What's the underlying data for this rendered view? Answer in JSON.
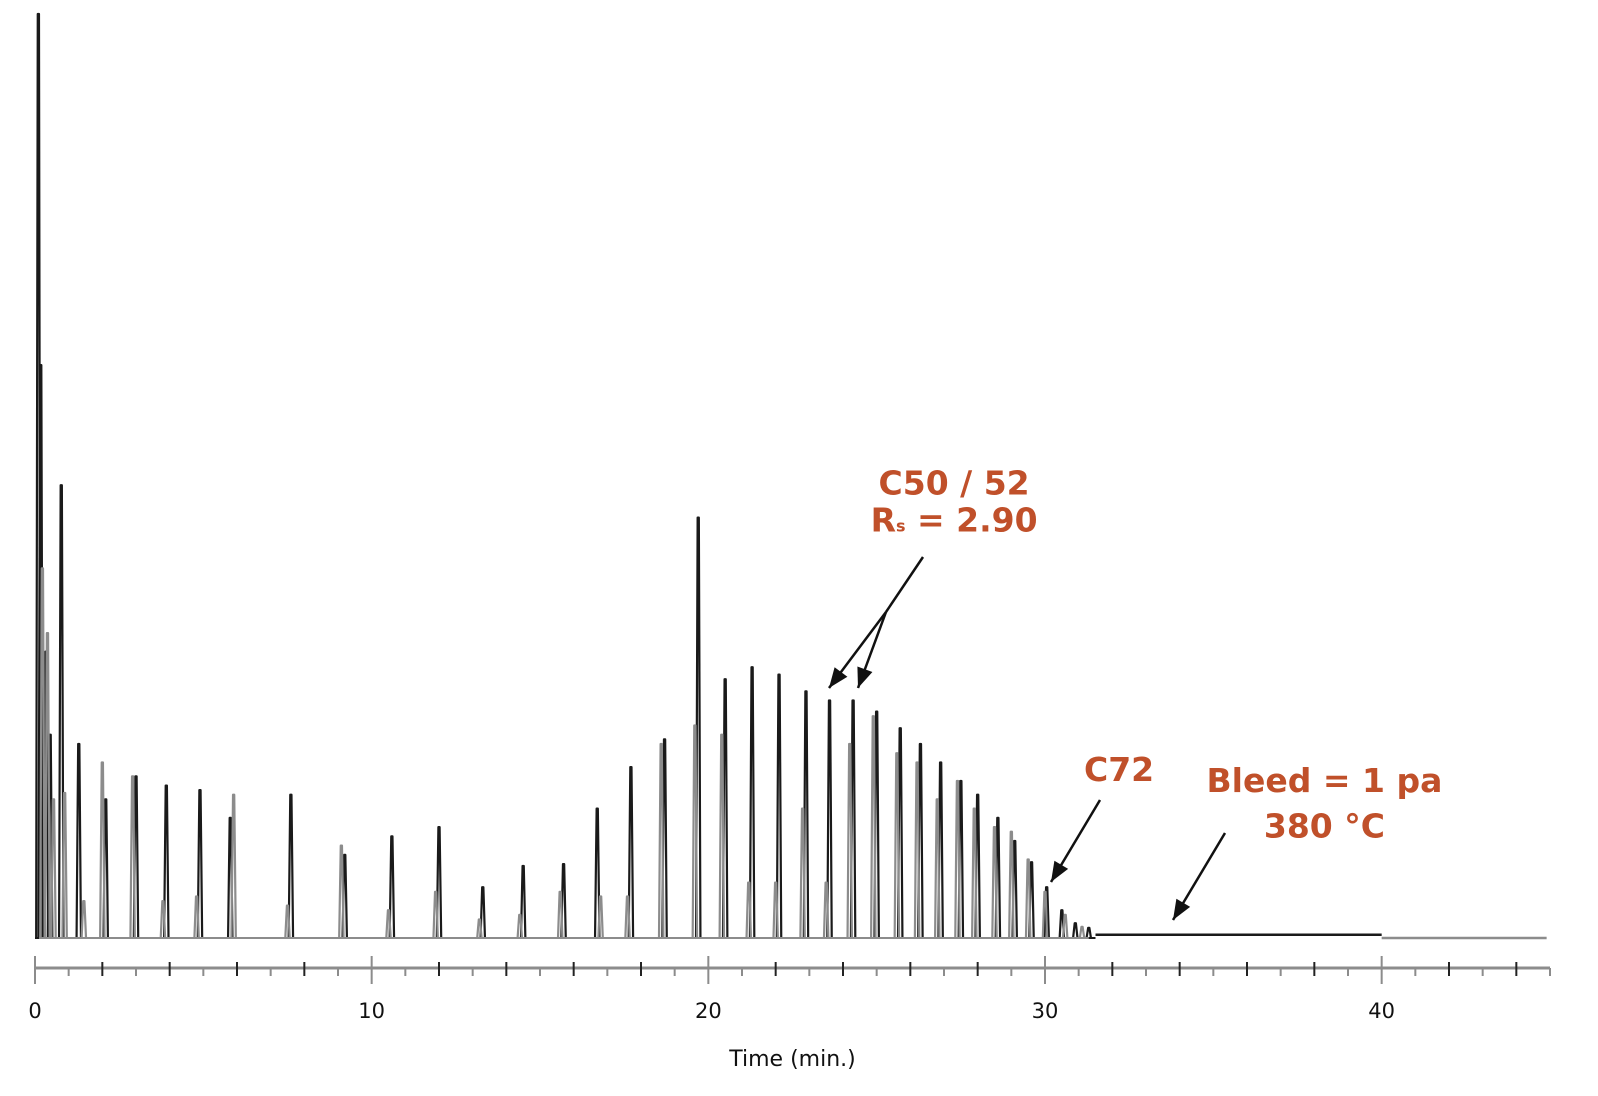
{
  "chart_data": {
    "type": "line",
    "xlabel": "Time (min.)",
    "ylabel": "",
    "title": "",
    "xlim": [
      0,
      45
    ],
    "ylim": [
      0,
      100
    ],
    "x_ticks": [
      0,
      10,
      20,
      30,
      40
    ],
    "grid": false,
    "series": [
      {
        "color": "#1a1a1a",
        "peaks": [
          {
            "x": 0.1,
            "y": 100
          },
          {
            "x": 0.17,
            "y": 62
          },
          {
            "x": 0.33,
            "y": 31
          },
          {
            "x": 0.45,
            "y": 22
          },
          {
            "x": 0.78,
            "y": 49
          },
          {
            "x": 1.3,
            "y": 21
          },
          {
            "x": 2.1,
            "y": 15
          },
          {
            "x": 3.0,
            "y": 17.5
          },
          {
            "x": 3.9,
            "y": 16.5
          },
          {
            "x": 4.9,
            "y": 16
          },
          {
            "x": 5.8,
            "y": 13
          },
          {
            "x": 7.6,
            "y": 15.5
          },
          {
            "x": 9.2,
            "y": 9
          },
          {
            "x": 10.6,
            "y": 11
          },
          {
            "x": 12.0,
            "y": 12
          },
          {
            "x": 13.3,
            "y": 5.5
          },
          {
            "x": 14.5,
            "y": 7.8
          },
          {
            "x": 15.7,
            "y": 8
          },
          {
            "x": 16.7,
            "y": 14
          },
          {
            "x": 17.7,
            "y": 18.5
          },
          {
            "x": 18.7,
            "y": 21.5
          },
          {
            "x": 19.7,
            "y": 45.5
          },
          {
            "x": 20.5,
            "y": 28
          },
          {
            "x": 21.3,
            "y": 29.3
          },
          {
            "x": 22.1,
            "y": 28.5
          },
          {
            "x": 22.9,
            "y": 26.7
          },
          {
            "x": 23.6,
            "y": 25.7
          },
          {
            "x": 24.3,
            "y": 25.7
          },
          {
            "x": 25.0,
            "y": 24.5
          },
          {
            "x": 25.7,
            "y": 22.7
          },
          {
            "x": 26.3,
            "y": 21
          },
          {
            "x": 26.9,
            "y": 19
          },
          {
            "x": 27.5,
            "y": 17
          },
          {
            "x": 28.0,
            "y": 15.5
          },
          {
            "x": 28.6,
            "y": 13
          },
          {
            "x": 29.1,
            "y": 10.5
          },
          {
            "x": 29.6,
            "y": 8.2
          },
          {
            "x": 30.05,
            "y": 5.5
          },
          {
            "x": 30.5,
            "y": 3
          },
          {
            "x": 30.9,
            "y": 1.6
          },
          {
            "x": 31.3,
            "y": 1.1
          }
        ],
        "baseline_segments": [
          {
            "x0": 31.5,
            "x1": 40.0,
            "y": 0.35
          }
        ]
      },
      {
        "color": "#8c8c8c",
        "peaks": [
          {
            "x": 0.22,
            "y": 40
          },
          {
            "x": 0.37,
            "y": 33
          },
          {
            "x": 0.55,
            "y": 15
          },
          {
            "x": 0.88,
            "y": 15.7
          },
          {
            "x": 1.45,
            "y": 4
          },
          {
            "x": 2.0,
            "y": 19
          },
          {
            "x": 2.9,
            "y": 17.5
          },
          {
            "x": 3.8,
            "y": 4
          },
          {
            "x": 4.8,
            "y": 4.5
          },
          {
            "x": 5.9,
            "y": 15.5
          },
          {
            "x": 7.5,
            "y": 3.5
          },
          {
            "x": 9.1,
            "y": 10
          },
          {
            "x": 10.5,
            "y": 3
          },
          {
            "x": 11.9,
            "y": 5
          },
          {
            "x": 13.2,
            "y": 2
          },
          {
            "x": 14.4,
            "y": 2.5
          },
          {
            "x": 15.6,
            "y": 5
          },
          {
            "x": 16.8,
            "y": 4.5
          },
          {
            "x": 17.6,
            "y": 4.5
          },
          {
            "x": 18.6,
            "y": 21
          },
          {
            "x": 19.6,
            "y": 23
          },
          {
            "x": 20.4,
            "y": 22
          },
          {
            "x": 21.2,
            "y": 6
          },
          {
            "x": 22.0,
            "y": 6
          },
          {
            "x": 22.8,
            "y": 14
          },
          {
            "x": 23.5,
            "y": 6
          },
          {
            "x": 24.2,
            "y": 21
          },
          {
            "x": 24.9,
            "y": 24
          },
          {
            "x": 25.6,
            "y": 20
          },
          {
            "x": 26.2,
            "y": 19
          },
          {
            "x": 26.8,
            "y": 15
          },
          {
            "x": 27.4,
            "y": 17
          },
          {
            "x": 27.9,
            "y": 14
          },
          {
            "x": 28.5,
            "y": 12
          },
          {
            "x": 29.0,
            "y": 11.5
          },
          {
            "x": 29.5,
            "y": 8.5
          },
          {
            "x": 30.0,
            "y": 5
          },
          {
            "x": 30.6,
            "y": 2.5
          },
          {
            "x": 31.1,
            "y": 1.2
          }
        ],
        "baseline_segments": [
          {
            "x0": 40.0,
            "x1": 44.9,
            "y": 0
          }
        ]
      }
    ],
    "annotations": [
      {
        "text": "C50 / 52",
        "color": "#c0502a",
        "at_x": 27.3,
        "at_y": 48
      },
      {
        "text_main": "R",
        "text_sub": "s",
        "text_rest": " = 2.90",
        "color": "#c0502a",
        "at_x": 27.3,
        "at_y": 44
      },
      {
        "text": "C72",
        "color": "#c0502a",
        "at_x": 32.2,
        "at_y": 17
      },
      {
        "text": "Bleed = 1 pa",
        "color": "#c0502a",
        "at_x": 38.3,
        "at_y": 15.8
      },
      {
        "text": "380 °C",
        "color": "#c0502a",
        "at_x": 38.3,
        "at_y": 10.9
      }
    ]
  }
}
